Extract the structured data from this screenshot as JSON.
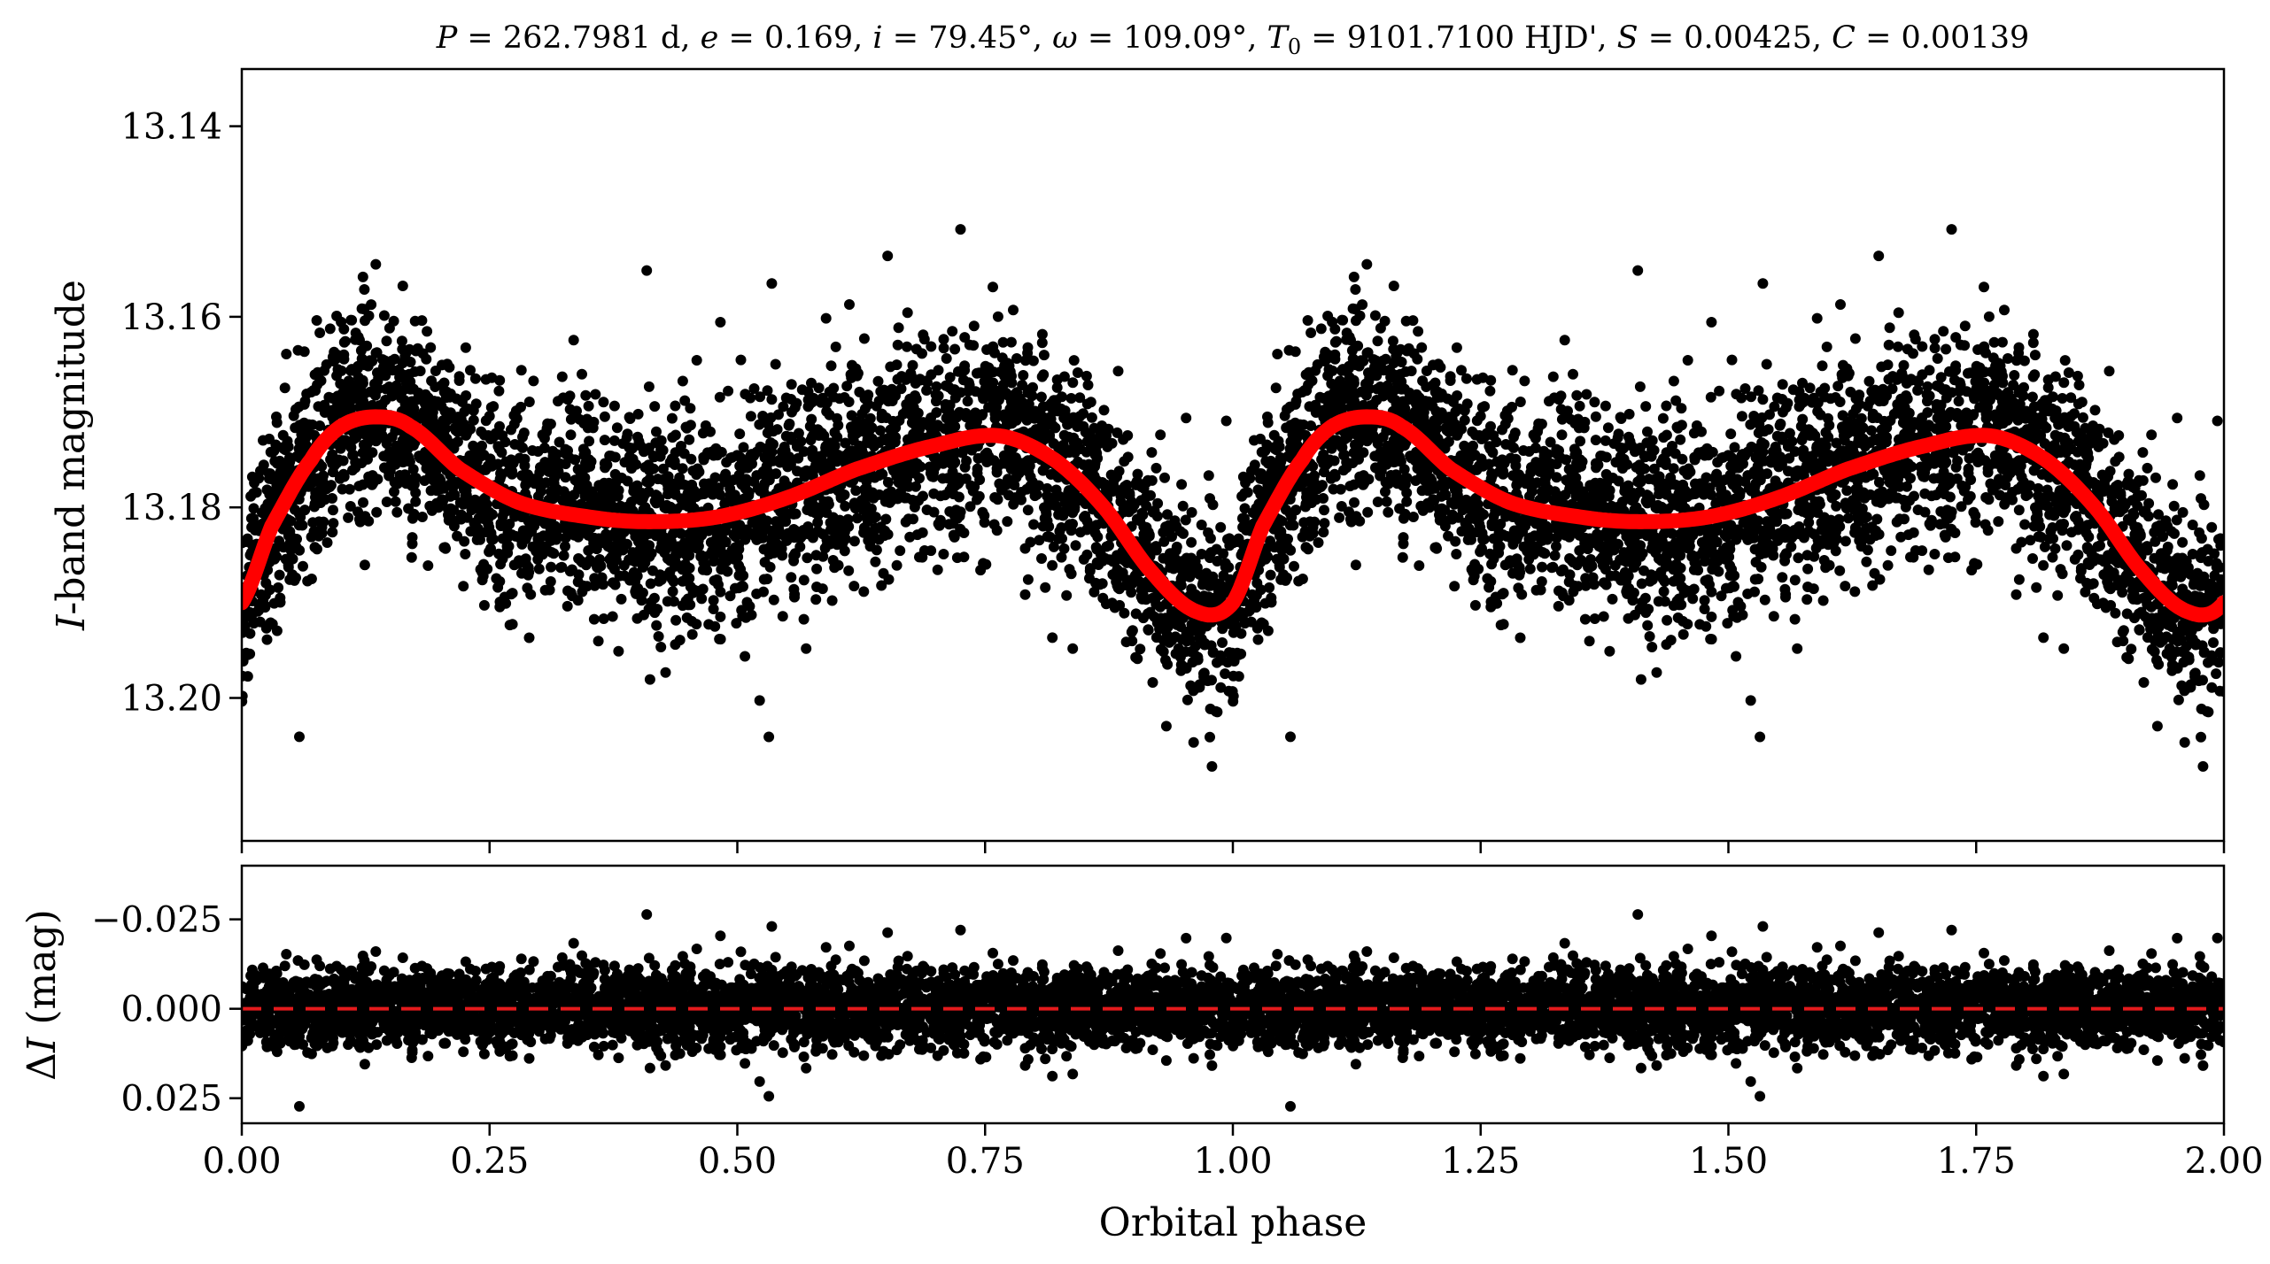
{
  "chart_data": [
    {
      "type": "scatter",
      "title": "P = 262.7981 d, e = 0.169, i = 79.45°, ω = 109.09°, T₀ = 9101.7100 HJD', S = 0.00425, C = 0.00139",
      "title_parts": {
        "p_sym": "P",
        "p_val": " = 262.7981 d, ",
        "e_sym": "e",
        "e_val": " = 0.169, ",
        "i_sym": "i",
        "i_val": " = 79.45°, ",
        "w_sym": "ω",
        "w_val": " = 109.09°, ",
        "t_sym": "T",
        "t_sub": "0",
        "t_val": " = 9101.7100 HJD', ",
        "s_sym": "S",
        "s_val": " = 0.00425, ",
        "c_sym": "C",
        "c_val": " = 0.00139"
      },
      "xlabel": "",
      "ylabel_italic": "I",
      "ylabel_rest": "-band magnitude",
      "xlim": [
        0.0,
        2.0
      ],
      "ylim": [
        13.215,
        13.134
      ],
      "y_inverted": true,
      "yticks": [
        "13.14",
        "13.16",
        "13.18",
        "13.20"
      ],
      "ytick_values": [
        13.14,
        13.16,
        13.18,
        13.2
      ],
      "model": {
        "color": "#ff0000",
        "period_phase": [
          0.0,
          2.0
        ],
        "control_points": [
          {
            "x": 0.0,
            "y": 13.19
          },
          {
            "x": 0.03,
            "y": 13.182
          },
          {
            "x": 0.07,
            "y": 13.175
          },
          {
            "x": 0.1,
            "y": 13.1715
          },
          {
            "x": 0.135,
            "y": 13.1705
          },
          {
            "x": 0.17,
            "y": 13.1715
          },
          {
            "x": 0.22,
            "y": 13.176
          },
          {
            "x": 0.28,
            "y": 13.1795
          },
          {
            "x": 0.35,
            "y": 13.181
          },
          {
            "x": 0.41,
            "y": 13.1815
          },
          {
            "x": 0.48,
            "y": 13.181
          },
          {
            "x": 0.55,
            "y": 13.179
          },
          {
            "x": 0.62,
            "y": 13.176
          },
          {
            "x": 0.7,
            "y": 13.1735
          },
          {
            "x": 0.765,
            "y": 13.1725
          },
          {
            "x": 0.82,
            "y": 13.175
          },
          {
            "x": 0.87,
            "y": 13.18
          },
          {
            "x": 0.92,
            "y": 13.187
          },
          {
            "x": 0.965,
            "y": 13.191
          },
          {
            "x": 1.0,
            "y": 13.19
          }
        ]
      },
      "points": {
        "color": "#000000",
        "n_shown": 7000,
        "scatter_sd_mag": 0.0055
      }
    },
    {
      "type": "scatter",
      "title": "",
      "xlabel": "Orbital phase",
      "ylabel_delta": "Δ",
      "ylabel_italic": "I",
      "ylabel_rest": " (mag)",
      "xlim": [
        0.0,
        2.0
      ],
      "ylim": [
        0.032,
        -0.04
      ],
      "y_inverted": true,
      "yticks": [
        "−0.025",
        "0.000",
        "0.025"
      ],
      "ytick_values": [
        -0.025,
        0.0,
        0.025
      ],
      "xticks": [
        "0.00",
        "0.25",
        "0.50",
        "0.75",
        "1.00",
        "1.25",
        "1.50",
        "1.75",
        "2.00"
      ],
      "xtick_values": [
        0.0,
        0.25,
        0.5,
        0.75,
        1.0,
        1.25,
        1.5,
        1.75,
        2.0
      ],
      "zero_line": {
        "y": 0.0,
        "color": "#e41a1c",
        "style": "dashed"
      },
      "points": {
        "color": "#000000"
      }
    }
  ]
}
